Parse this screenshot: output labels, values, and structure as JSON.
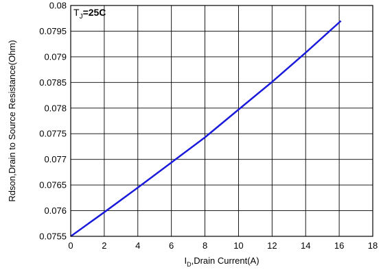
{
  "chart_data": {
    "type": "line",
    "annotation": {
      "main": "T",
      "sub": "J",
      "suffix": "=25C"
    },
    "xlabel": {
      "main": "I",
      "sub": "D",
      "suffix": ",Drain Current(A)"
    },
    "ylabel": "Rdson,Drain to Source Resistance(Ohm)",
    "xlim": [
      0,
      18
    ],
    "ylim": [
      0.0755,
      0.08
    ],
    "xticks": [
      "0",
      "2",
      "4",
      "6",
      "8",
      "10",
      "12",
      "14",
      "16",
      "18"
    ],
    "yticks": [
      "0.0755",
      "0.076",
      "0.0765",
      "0.077",
      "0.0775",
      "0.078",
      "0.0785",
      "0.079",
      "0.0795",
      "0.08"
    ],
    "grid": true,
    "series": [
      {
        "color": "#1a1adb",
        "x": [
          0,
          2,
          4,
          6,
          8,
          10,
          12,
          14,
          16.1
        ],
        "y": [
          0.0755,
          0.07597,
          0.07645,
          0.07694,
          0.07743,
          0.07797,
          0.07851,
          0.07908,
          0.0797
        ]
      }
    ]
  }
}
